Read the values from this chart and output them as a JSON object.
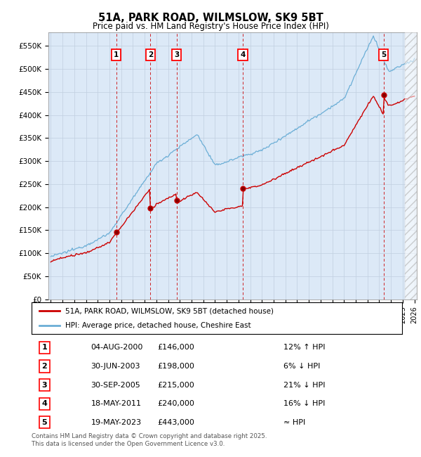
{
  "title": "51A, PARK ROAD, WILMSLOW, SK9 5BT",
  "subtitle": "Price paid vs. HM Land Registry's House Price Index (HPI)",
  "ylabel_ticks": [
    "£0",
    "£50K",
    "£100K",
    "£150K",
    "£200K",
    "£250K",
    "£300K",
    "£350K",
    "£400K",
    "£450K",
    "£500K",
    "£550K"
  ],
  "ytick_values": [
    0,
    50000,
    100000,
    150000,
    200000,
    250000,
    300000,
    350000,
    400000,
    450000,
    500000,
    550000
  ],
  "ylim": [
    0,
    580000
  ],
  "xlim_start": 1994.8,
  "xlim_end": 2026.2,
  "sale_points": [
    {
      "num": 1,
      "year": 2000.58,
      "price": 146000
    },
    {
      "num": 2,
      "year": 2003.49,
      "price": 198000
    },
    {
      "num": 3,
      "year": 2005.74,
      "price": 215000
    },
    {
      "num": 4,
      "year": 2011.37,
      "price": 240000
    },
    {
      "num": 5,
      "year": 2023.37,
      "price": 443000
    }
  ],
  "legend_entries": [
    "51A, PARK ROAD, WILMSLOW, SK9 5BT (detached house)",
    "HPI: Average price, detached house, Cheshire East"
  ],
  "table_rows": [
    [
      "1",
      "04-AUG-2000",
      "£146,000",
      "12% ↑ HPI"
    ],
    [
      "2",
      "30-JUN-2003",
      "£198,000",
      "6% ↓ HPI"
    ],
    [
      "3",
      "30-SEP-2005",
      "£215,000",
      "21% ↓ HPI"
    ],
    [
      "4",
      "18-MAY-2011",
      "£240,000",
      "16% ↓ HPI"
    ],
    [
      "5",
      "19-MAY-2023",
      "£443,000",
      "≈ HPI"
    ]
  ],
  "footer": "Contains HM Land Registry data © Crown copyright and database right 2025.\nThis data is licensed under the Open Government Licence v3.0.",
  "hpi_color": "#6baed6",
  "price_color": "#cc0000",
  "dashed_line_color": "#cc0000",
  "background_color": "#dce9f7",
  "plot_bg_color": "#ffffff"
}
